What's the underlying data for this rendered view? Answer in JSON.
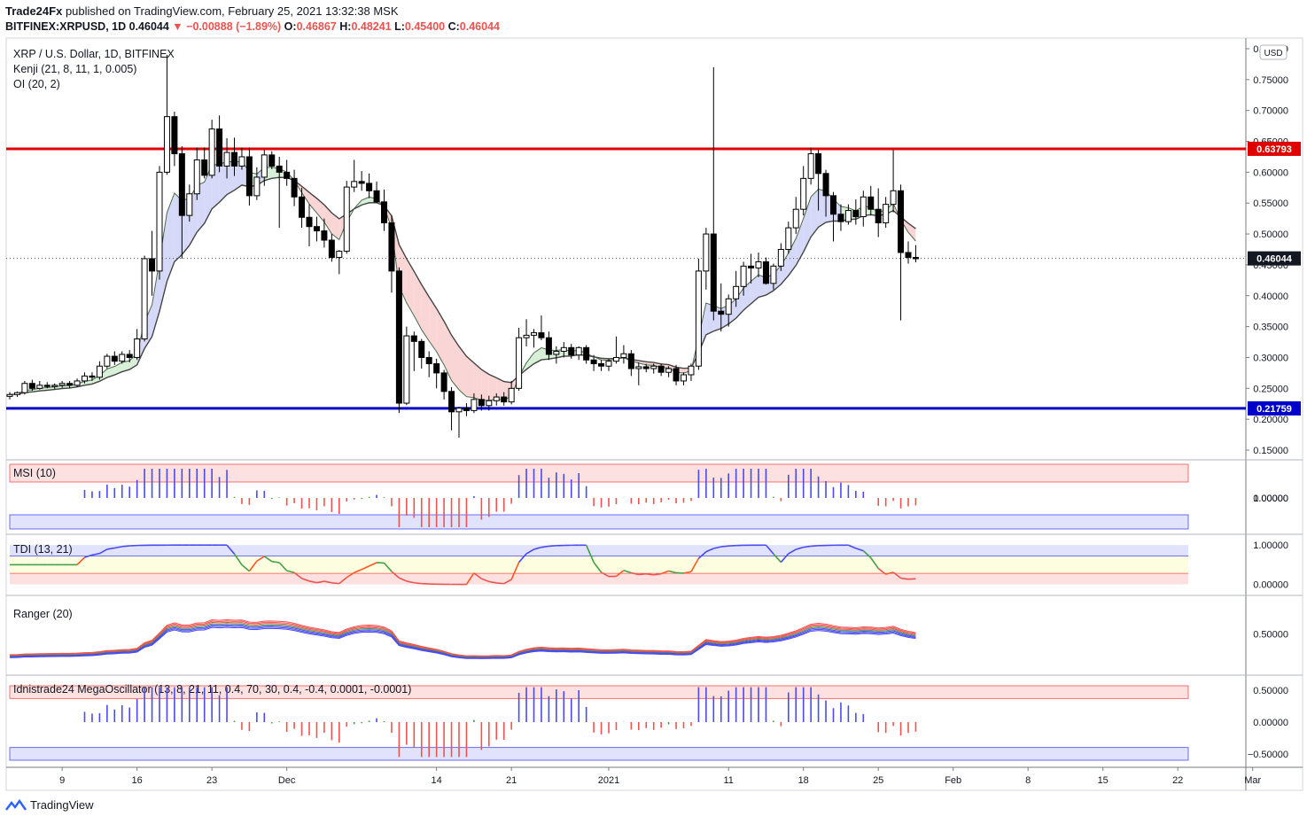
{
  "header": {
    "publisher": "Trade24Fx",
    "published_text": " published on TradingView.com, February 25, 2021 13:32:38 MSK",
    "symbol": "BITFINEX:XRPUSD, 1D",
    "last": "0.46044",
    "change": "−0.00888 (−1.89%)",
    "o_label": "O:",
    "o": "0.46867",
    "h_label": "H:",
    "h": "0.48241",
    "l_label": "L:",
    "l": "0.45400",
    "c_label": "C:",
    "c": "0.46044"
  },
  "main_legend": {
    "title": "XRP / U.S. Dollar, 1D, BITFINEX",
    "kenji": "Kenji (21, 8, 11, 1, 0.005)",
    "oi": "OI (20, 2)"
  },
  "panels": {
    "msi": "MSI (10)",
    "tdi": "TDI (13, 21)",
    "ranger": "Ranger (20)",
    "mega": "Idnistrade24 MegaOscillator (13, 8, 21, 11, 0.4, 70, 30, 0.4, -0.4, 0.0001, -0.0001)"
  },
  "currency_badge": "USD",
  "colors": {
    "red_line": "#e00000",
    "blue_line": "#0000cc",
    "up_bar": "#4a4af0",
    "down_bar": "#ef5350",
    "neutral_bar": "#43a047",
    "price_label_red": "#e00000",
    "price_label_blue": "#0000cc",
    "price_label_black": "#131722"
  },
  "footer": {
    "brand": "TradingView"
  },
  "chart_data": {
    "type": "candlestick",
    "ylim": [
      0.15,
      0.8
    ],
    "y_ticks": [
      "0.80000",
      "0.75000",
      "0.70000",
      "0.65000",
      "0.60000",
      "0.55000",
      "0.50000",
      "0.45000",
      "0.40000",
      "0.35000",
      "0.30000",
      "0.25000",
      "0.20000",
      "0.15000"
    ],
    "x_ticks": [
      "9",
      "16",
      "23",
      "Dec",
      "14",
      "21",
      "2021",
      "11",
      "18",
      "25",
      "Feb",
      "8",
      "15",
      "22",
      "Mar"
    ],
    "horizontal_levels": [
      {
        "value": 0.63793,
        "label": "0.63793",
        "color": "red"
      },
      {
        "value": 0.21759,
        "label": "0.21759",
        "color": "blue"
      }
    ],
    "last_price": {
      "value": 0.46044,
      "label": "0.46044"
    },
    "ohlc": [
      [
        0.237,
        0.244,
        0.232,
        0.24
      ],
      [
        0.24,
        0.245,
        0.236,
        0.243
      ],
      [
        0.243,
        0.262,
        0.24,
        0.258
      ],
      [
        0.258,
        0.264,
        0.246,
        0.25
      ],
      [
        0.25,
        0.262,
        0.248,
        0.255
      ],
      [
        0.255,
        0.26,
        0.25,
        0.253
      ],
      [
        0.253,
        0.258,
        0.249,
        0.255
      ],
      [
        0.255,
        0.262,
        0.251,
        0.258
      ],
      [
        0.258,
        0.262,
        0.25,
        0.255
      ],
      [
        0.255,
        0.266,
        0.252,
        0.262
      ],
      [
        0.262,
        0.276,
        0.258,
        0.27
      ],
      [
        0.27,
        0.276,
        0.262,
        0.268
      ],
      [
        0.268,
        0.294,
        0.264,
        0.286
      ],
      [
        0.286,
        0.306,
        0.282,
        0.302
      ],
      [
        0.302,
        0.31,
        0.288,
        0.294
      ],
      [
        0.294,
        0.31,
        0.29,
        0.305
      ],
      [
        0.305,
        0.312,
        0.292,
        0.3
      ],
      [
        0.3,
        0.346,
        0.296,
        0.33
      ],
      [
        0.33,
        0.465,
        0.326,
        0.46
      ],
      [
        0.46,
        0.505,
        0.4,
        0.44
      ],
      [
        0.44,
        0.61,
        0.426,
        0.6
      ],
      [
        0.6,
        0.79,
        0.596,
        0.69
      ],
      [
        0.69,
        0.698,
        0.61,
        0.63
      ],
      [
        0.63,
        0.642,
        0.46,
        0.53
      ],
      [
        0.53,
        0.58,
        0.52,
        0.565
      ],
      [
        0.565,
        0.64,
        0.555,
        0.62
      ],
      [
        0.62,
        0.64,
        0.59,
        0.595
      ],
      [
        0.595,
        0.685,
        0.59,
        0.67
      ],
      [
        0.67,
        0.692,
        0.6,
        0.61
      ],
      [
        0.61,
        0.655,
        0.59,
        0.632
      ],
      [
        0.632,
        0.656,
        0.594,
        0.61
      ],
      [
        0.61,
        0.64,
        0.604,
        0.625
      ],
      [
        0.625,
        0.64,
        0.546,
        0.562
      ],
      [
        0.562,
        0.608,
        0.555,
        0.592
      ],
      [
        0.592,
        0.636,
        0.578,
        0.628
      ],
      [
        0.628,
        0.634,
        0.605,
        0.61
      ],
      [
        0.61,
        0.625,
        0.51,
        0.6
      ],
      [
        0.6,
        0.62,
        0.578,
        0.59
      ],
      [
        0.59,
        0.604,
        0.545,
        0.56
      ],
      [
        0.56,
        0.575,
        0.51,
        0.527
      ],
      [
        0.527,
        0.548,
        0.48,
        0.512
      ],
      [
        0.512,
        0.528,
        0.488,
        0.505
      ],
      [
        0.505,
        0.525,
        0.478,
        0.49
      ],
      [
        0.49,
        0.5,
        0.455,
        0.462
      ],
      [
        0.462,
        0.474,
        0.435,
        0.472
      ],
      [
        0.472,
        0.586,
        0.468,
        0.576
      ],
      [
        0.576,
        0.62,
        0.568,
        0.585
      ],
      [
        0.585,
        0.602,
        0.57,
        0.582
      ],
      [
        0.582,
        0.598,
        0.558,
        0.57
      ],
      [
        0.57,
        0.585,
        0.55,
        0.552
      ],
      [
        0.552,
        0.572,
        0.505,
        0.518
      ],
      [
        0.518,
        0.53,
        0.405,
        0.44
      ],
      [
        0.44,
        0.446,
        0.21,
        0.226
      ],
      [
        0.226,
        0.35,
        0.223,
        0.335
      ],
      [
        0.335,
        0.342,
        0.278,
        0.326
      ],
      [
        0.326,
        0.33,
        0.282,
        0.3
      ],
      [
        0.3,
        0.31,
        0.268,
        0.29
      ],
      [
        0.29,
        0.298,
        0.25,
        0.275
      ],
      [
        0.275,
        0.28,
        0.232,
        0.245
      ],
      [
        0.245,
        0.252,
        0.182,
        0.212
      ],
      [
        0.212,
        0.22,
        0.17,
        0.218
      ],
      [
        0.218,
        0.226,
        0.205,
        0.214
      ],
      [
        0.214,
        0.242,
        0.21,
        0.232
      ],
      [
        0.232,
        0.24,
        0.214,
        0.222
      ],
      [
        0.222,
        0.238,
        0.214,
        0.23
      ],
      [
        0.23,
        0.242,
        0.222,
        0.236
      ],
      [
        0.236,
        0.244,
        0.222,
        0.228
      ],
      [
        0.228,
        0.262,
        0.224,
        0.25
      ],
      [
        0.25,
        0.348,
        0.246,
        0.332
      ],
      [
        0.332,
        0.362,
        0.318,
        0.336
      ],
      [
        0.336,
        0.346,
        0.316,
        0.34
      ],
      [
        0.34,
        0.368,
        0.328,
        0.332
      ],
      [
        0.332,
        0.342,
        0.296,
        0.305
      ],
      [
        0.305,
        0.318,
        0.29,
        0.31
      ],
      [
        0.31,
        0.325,
        0.3,
        0.316
      ],
      [
        0.316,
        0.322,
        0.298,
        0.304
      ],
      [
        0.304,
        0.318,
        0.296,
        0.316
      ],
      [
        0.316,
        0.32,
        0.29,
        0.296
      ],
      [
        0.296,
        0.304,
        0.278,
        0.29
      ],
      [
        0.29,
        0.296,
        0.278,
        0.286
      ],
      [
        0.286,
        0.298,
        0.278,
        0.294
      ],
      [
        0.294,
        0.334,
        0.29,
        0.3
      ],
      [
        0.3,
        0.32,
        0.29,
        0.306
      ],
      [
        0.306,
        0.312,
        0.27,
        0.282
      ],
      [
        0.282,
        0.292,
        0.255,
        0.285
      ],
      [
        0.285,
        0.29,
        0.276,
        0.282
      ],
      [
        0.282,
        0.29,
        0.274,
        0.286
      ],
      [
        0.286,
        0.29,
        0.27,
        0.276
      ],
      [
        0.276,
        0.286,
        0.268,
        0.282
      ],
      [
        0.282,
        0.288,
        0.255,
        0.262
      ],
      [
        0.262,
        0.276,
        0.255,
        0.272
      ],
      [
        0.272,
        0.29,
        0.262,
        0.286
      ],
      [
        0.286,
        0.46,
        0.28,
        0.44
      ],
      [
        0.44,
        0.51,
        0.41,
        0.5
      ],
      [
        0.5,
        0.77,
        0.36,
        0.375
      ],
      [
        0.375,
        0.42,
        0.342,
        0.37
      ],
      [
        0.37,
        0.402,
        0.35,
        0.395
      ],
      [
        0.395,
        0.44,
        0.382,
        0.415
      ],
      [
        0.415,
        0.455,
        0.4,
        0.448
      ],
      [
        0.448,
        0.468,
        0.42,
        0.445
      ],
      [
        0.445,
        0.47,
        0.43,
        0.455
      ],
      [
        0.455,
        0.462,
        0.418,
        0.42
      ],
      [
        0.42,
        0.452,
        0.41,
        0.448
      ],
      [
        0.448,
        0.485,
        0.44,
        0.475
      ],
      [
        0.475,
        0.52,
        0.468,
        0.51
      ],
      [
        0.51,
        0.56,
        0.5,
        0.54
      ],
      [
        0.54,
        0.61,
        0.53,
        0.59
      ],
      [
        0.59,
        0.64,
        0.58,
        0.63
      ],
      [
        0.63,
        0.636,
        0.538,
        0.598
      ],
      [
        0.598,
        0.604,
        0.528,
        0.562
      ],
      [
        0.562,
        0.568,
        0.488,
        0.532
      ],
      [
        0.532,
        0.548,
        0.505,
        0.52
      ],
      [
        0.52,
        0.548,
        0.515,
        0.538
      ],
      [
        0.538,
        0.556,
        0.515,
        0.528
      ],
      [
        0.528,
        0.57,
        0.512,
        0.56
      ],
      [
        0.56,
        0.578,
        0.53,
        0.54
      ],
      [
        0.54,
        0.574,
        0.495,
        0.518
      ],
      [
        0.518,
        0.56,
        0.51,
        0.548
      ],
      [
        0.548,
        0.636,
        0.535,
        0.57
      ],
      [
        0.57,
        0.58,
        0.36,
        0.47
      ],
      [
        0.47,
        0.488,
        0.452,
        0.462
      ],
      [
        0.462,
        0.482,
        0.454,
        0.46
      ]
    ]
  }
}
